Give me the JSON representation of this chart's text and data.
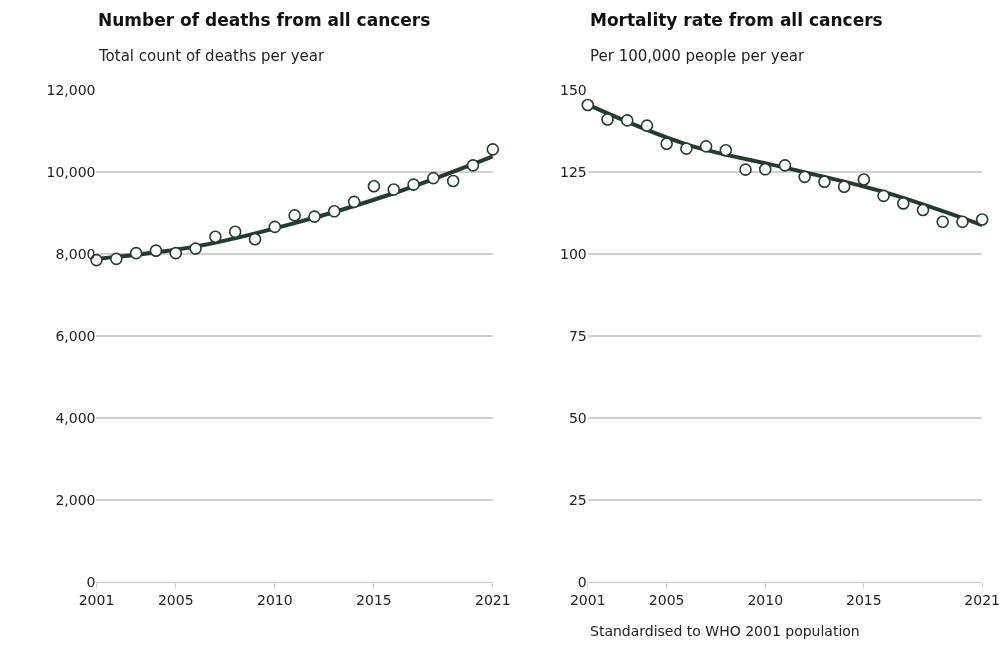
{
  "chart_data": [
    {
      "type": "scatter",
      "title": "Number of deaths from all cancers",
      "subtitle": "Total count of deaths per year",
      "x": [
        2001,
        2002,
        2003,
        2004,
        2005,
        2006,
        2007,
        2008,
        2009,
        2010,
        2011,
        2012,
        2013,
        2014,
        2015,
        2016,
        2017,
        2018,
        2019,
        2020,
        2021
      ],
      "series": [
        {
          "color": "#263a2f",
          "marker": "circle",
          "values": [
            7850,
            7880,
            8020,
            8080,
            8020,
            8130,
            8420,
            8540,
            8360,
            8660,
            8940,
            8910,
            9040,
            9270,
            9650,
            9570,
            9690,
            9850,
            9780,
            10160,
            10550
          ]
        },
        {
          "type": "line",
          "color": "#263a2f",
          "x": [
            2001,
            2006,
            2011,
            2016,
            2021
          ],
          "values": [
            7880,
            8180,
            8750,
            9480,
            10380
          ]
        }
      ],
      "xlim": [
        2001,
        2021
      ],
      "xticks": [
        2001,
        2005,
        2010,
        2015,
        2021
      ],
      "ylim": [
        0,
        12000
      ],
      "yticks": [
        0,
        {
          "value": 2000,
          "label": "2,000"
        },
        {
          "value": 4000,
          "label": "4,000"
        },
        {
          "value": 6000,
          "label": "6,000"
        },
        {
          "value": 8000,
          "label": "8,000"
        },
        {
          "value": 10000,
          "label": "10,000"
        },
        {
          "value": 12000,
          "label": "12,000"
        }
      ],
      "grid": "y"
    },
    {
      "type": "scatter",
      "title": "Mortality rate from all cancers",
      "subtitle": "Per 100,000 people per year",
      "annotations": [
        "Standardised to WHO 2001 population"
      ],
      "x": [
        2001,
        2002,
        2003,
        2004,
        2005,
        2006,
        2007,
        2008,
        2009,
        2010,
        2011,
        2012,
        2013,
        2014,
        2015,
        2016,
        2017,
        2018,
        2019,
        2020,
        2021
      ],
      "series": [
        {
          "color": "#263a2f",
          "marker": "circle",
          "values": [
            145.4,
            141.0,
            140.7,
            139.1,
            133.6,
            132.1,
            132.8,
            131.6,
            125.7,
            125.8,
            127.0,
            123.5,
            122.0,
            120.5,
            122.7,
            117.7,
            115.4,
            113.4,
            109.8,
            109.8,
            110.5
          ]
        },
        {
          "type": "line",
          "color": "#263a2f",
          "x": [
            2001,
            2006,
            2011,
            2016,
            2021
          ],
          "values": [
            145.5,
            133.4,
            126.3,
            118.9,
            108.8
          ]
        }
      ],
      "xlim": [
        2001,
        2021
      ],
      "xticks": [
        2001,
        2005,
        2010,
        2015,
        2021
      ],
      "ylim": [
        0,
        150
      ],
      "yticks": [
        0,
        25,
        50,
        75,
        100,
        125,
        150
      ],
      "grid": "y"
    }
  ]
}
